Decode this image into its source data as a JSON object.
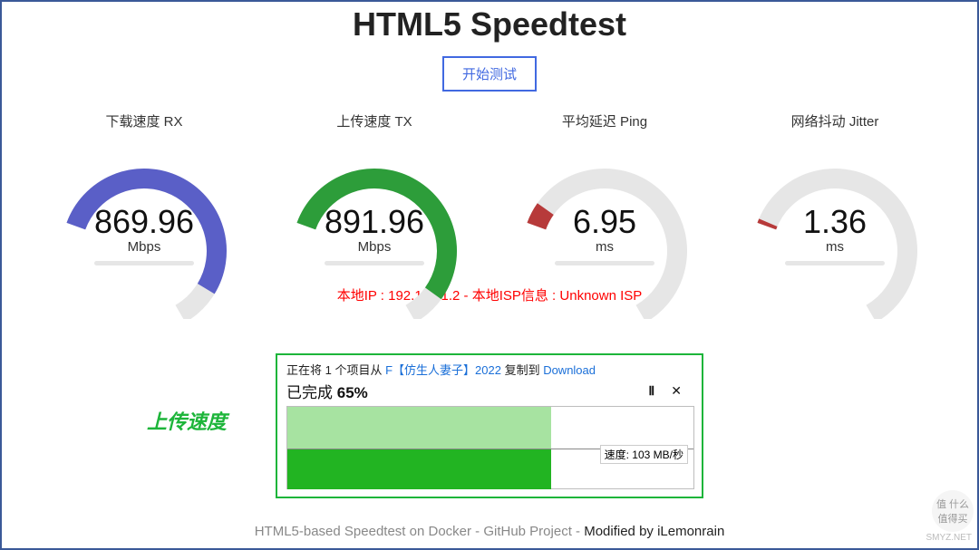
{
  "title": "HTML5 Speedtest",
  "start_button": "开始测试",
  "colors": {
    "border": "#3b5998",
    "accent": "#4169E1",
    "ip_text": "#ff0000",
    "annotation": "#1db53a",
    "dialog_border": "#1db53a",
    "link": "#1a6fd8",
    "graph_light": "#a7e3a1",
    "graph_dark": "#22b422",
    "footer_grey": "#888888",
    "gauge_track": "#e6e6e6"
  },
  "gauges": [
    {
      "label": "下载速度 RX",
      "value": "869.96",
      "unit": "Mbps",
      "color": "#5a5fc7",
      "fill_ratio": 0.87
    },
    {
      "label": "上传速度 TX",
      "value": "891.96",
      "unit": "Mbps",
      "color": "#2d9d3a",
      "fill_ratio": 0.89
    },
    {
      "label": "平均延迟 Ping",
      "value": "6.95",
      "unit": "ms",
      "color": "#b73a3a",
      "fill_ratio": 0.07
    },
    {
      "label": "网络抖动 Jitter",
      "value": "1.36",
      "unit": "ms",
      "color": "#b73a3a",
      "fill_ratio": 0.014
    }
  ],
  "ip_line": {
    "prefix": "本地IP : ",
    "ip": "192.168.1.2",
    "mid": " - 本地ISP信息 : ",
    "isp": "Unknown ISP"
  },
  "annotation": "上传速度",
  "copy_dialog": {
    "line1_pre": "正在将 1 个项目从 ",
    "line1_src": "F【仿生人妻子】2022",
    "line1_mid": " 复制到 ",
    "line1_dst": "Download",
    "progress_label": "已完成 ",
    "progress_pct": "65%",
    "speed_label": "速度: 103 MB/秒",
    "graph_fill_pct": 65
  },
  "footer": {
    "grey": "HTML5-based Speedtest on Docker - GitHub Project - ",
    "mod": "Modified by iLemonrain"
  },
  "watermark": {
    "text": "值 什么值得买",
    "site": "SMYZ.NET"
  }
}
